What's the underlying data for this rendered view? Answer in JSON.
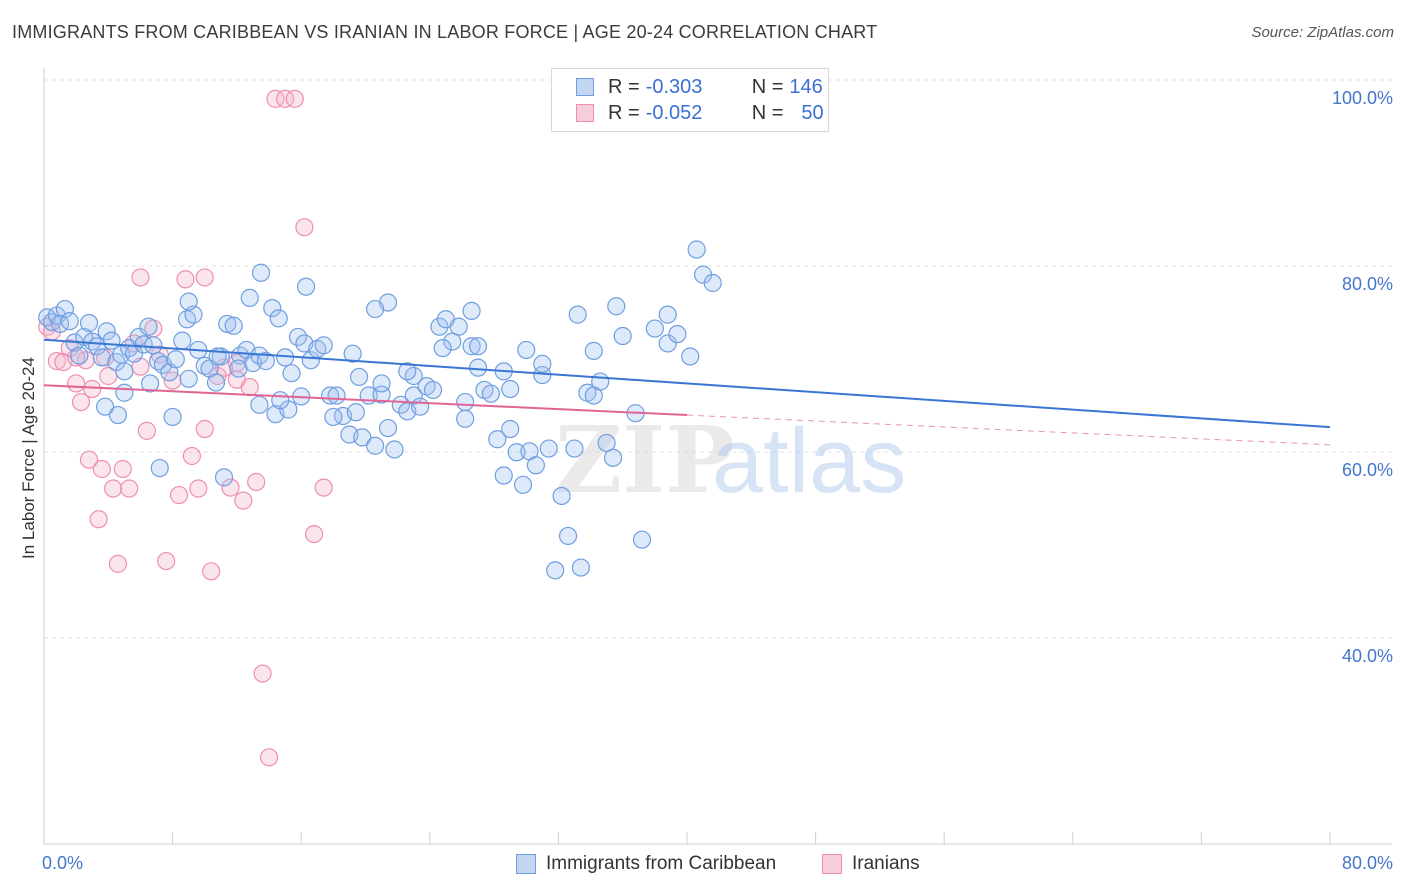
{
  "header": {
    "title": "IMMIGRANTS FROM CARIBBEAN VS IRANIAN IN LABOR FORCE | AGE 20-24 CORRELATION CHART",
    "source": "Source: ZipAtlas.com"
  },
  "legend": {
    "row1": {
      "r_label": "R =",
      "r_value": "-0.303",
      "n_label": "N =",
      "n_value": "146"
    },
    "row2": {
      "r_label": "R =",
      "r_value": "-0.052",
      "n_label": "N =",
      "n_value": "50"
    }
  },
  "bottom_legend": {
    "series1": "Immigrants from Caribbean",
    "series2": "Iranians"
  },
  "watermark": {
    "zip": "ZIP",
    "atlas": "atlas"
  },
  "colors": {
    "blue": "#6f9fe0",
    "blue_line": "#3a76d4",
    "pink": "#ee8fb0",
    "pink_line": "#e06595",
    "tick": "#4477cc"
  },
  "chart_data": {
    "type": "scatter",
    "title": "IMMIGRANTS FROM CARIBBEAN VS IRANIAN IN LABOR FORCE | AGE 20-24 CORRELATION CHART",
    "xlabel": "",
    "ylabel": "In Labor Force | Age 20-24",
    "xlim": [
      0,
      80
    ],
    "ylim": [
      20,
      104
    ],
    "x_tick_labels": [
      "0.0%",
      "80.0%"
    ],
    "y_ticks": [
      40,
      60,
      80,
      100
    ],
    "y_tick_labels": [
      "40.0%",
      "60.0%",
      "80.0%",
      "100.0%"
    ],
    "grid": true,
    "series": [
      {
        "name": "Immigrants from Caribbean",
        "r": -0.303,
        "n": 146,
        "trend": {
          "x": [
            0,
            80
          ],
          "y": [
            73.9,
            64.5
          ],
          "dashed_from": null
        },
        "points": [
          [
            0.2,
            76.3
          ],
          [
            0.5,
            75.8
          ],
          [
            0.8,
            76.5
          ],
          [
            1.0,
            75.6
          ],
          [
            1.3,
            77.2
          ],
          [
            1.6,
            75.9
          ],
          [
            1.9,
            73.6
          ],
          [
            2.2,
            72.2
          ],
          [
            2.5,
            74.2
          ],
          [
            2.8,
            75.7
          ],
          [
            3.0,
            73.7
          ],
          [
            3.3,
            73.2
          ],
          [
            3.6,
            72.0
          ],
          [
            3.9,
            74.8
          ],
          [
            4.2,
            73.8
          ],
          [
            4.5,
            71.5
          ],
          [
            4.8,
            72.3
          ],
          [
            5.0,
            70.5
          ],
          [
            5.3,
            73.0
          ],
          [
            5.6,
            72.4
          ],
          [
            5.9,
            74.2
          ],
          [
            6.2,
            73.4
          ],
          [
            6.5,
            75.3
          ],
          [
            6.8,
            73.3
          ],
          [
            7.1,
            71.6
          ],
          [
            7.4,
            71.2
          ],
          [
            7.8,
            70.4
          ],
          [
            8.2,
            71.8
          ],
          [
            8.6,
            73.8
          ],
          [
            8.9,
            76.1
          ],
          [
            9.3,
            76.6
          ],
          [
            9.6,
            72.8
          ],
          [
            10.0,
            71.1
          ],
          [
            10.3,
            70.8
          ],
          [
            10.7,
            69.3
          ],
          [
            11.0,
            72.1
          ],
          [
            11.4,
            75.6
          ],
          [
            11.8,
            75.4
          ],
          [
            12.2,
            72.2
          ],
          [
            12.6,
            72.8
          ],
          [
            13.0,
            71.4
          ],
          [
            13.4,
            72.2
          ],
          [
            13.8,
            71.6
          ],
          [
            14.2,
            77.3
          ],
          [
            14.6,
            76.2
          ],
          [
            15.0,
            72.0
          ],
          [
            15.4,
            70.3
          ],
          [
            15.8,
            74.2
          ],
          [
            16.2,
            73.5
          ],
          [
            16.6,
            71.7
          ],
          [
            17.0,
            72.9
          ],
          [
            17.4,
            73.3
          ],
          [
            17.8,
            67.9
          ],
          [
            18.2,
            67.9
          ],
          [
            18.6,
            65.7
          ],
          [
            19.0,
            63.7
          ],
          [
            19.4,
            66.1
          ],
          [
            19.8,
            63.4
          ],
          [
            20.2,
            67.9
          ],
          [
            20.6,
            62.5
          ],
          [
            21.0,
            68.0
          ],
          [
            21.4,
            64.4
          ],
          [
            21.8,
            62.1
          ],
          [
            22.2,
            66.9
          ],
          [
            22.6,
            66.2
          ],
          [
            23.0,
            67.9
          ],
          [
            23.4,
            66.7
          ],
          [
            23.8,
            68.9
          ],
          [
            24.2,
            68.5
          ],
          [
            24.6,
            75.3
          ],
          [
            25.0,
            76.1
          ],
          [
            25.4,
            73.7
          ],
          [
            25.8,
            75.3
          ],
          [
            26.2,
            67.2
          ],
          [
            26.6,
            73.2
          ],
          [
            27.0,
            70.9
          ],
          [
            27.4,
            68.5
          ],
          [
            27.8,
            68.1
          ],
          [
            28.2,
            63.2
          ],
          [
            28.6,
            59.3
          ],
          [
            29.0,
            64.3
          ],
          [
            29.4,
            61.8
          ],
          [
            29.8,
            58.3
          ],
          [
            30.2,
            61.9
          ],
          [
            30.6,
            60.4
          ],
          [
            31.0,
            70.1
          ],
          [
            31.4,
            62.2
          ],
          [
            31.8,
            49.1
          ],
          [
            32.2,
            57.1
          ],
          [
            32.6,
            52.8
          ],
          [
            33.0,
            62.2
          ],
          [
            33.4,
            49.4
          ],
          [
            33.8,
            68.2
          ],
          [
            34.2,
            67.9
          ],
          [
            34.6,
            69.4
          ],
          [
            35.0,
            62.8
          ],
          [
            35.4,
            61.2
          ],
          [
            36.0,
            74.3
          ],
          [
            36.8,
            66.0
          ],
          [
            37.2,
            52.4
          ],
          [
            38.0,
            75.1
          ],
          [
            38.8,
            73.5
          ],
          [
            39.4,
            74.5
          ],
          [
            40.2,
            72.1
          ],
          [
            40.6,
            83.6
          ],
          [
            41.0,
            80.9
          ],
          [
            41.6,
            80.0
          ],
          [
            13.5,
            81.1
          ],
          [
            16.3,
            79.6
          ],
          [
            21.4,
            77.9
          ],
          [
            26.6,
            77.0
          ],
          [
            27.0,
            73.2
          ],
          [
            28.6,
            70.5
          ],
          [
            33.2,
            76.6
          ],
          [
            34.2,
            72.7
          ],
          [
            35.6,
            77.5
          ],
          [
            38.8,
            76.6
          ],
          [
            30.0,
            72.8
          ],
          [
            31.0,
            71.3
          ],
          [
            29.0,
            68.6
          ],
          [
            5.0,
            68.2
          ],
          [
            6.6,
            69.2
          ],
          [
            9.0,
            69.7
          ],
          [
            10.8,
            72.1
          ],
          [
            12.1,
            70.8
          ],
          [
            13.4,
            66.9
          ],
          [
            14.4,
            65.9
          ],
          [
            16.0,
            67.8
          ],
          [
            18.0,
            65.6
          ],
          [
            15.2,
            66.4
          ],
          [
            14.7,
            67.4
          ],
          [
            19.6,
            69.9
          ],
          [
            21.0,
            69.2
          ],
          [
            3.8,
            66.7
          ],
          [
            4.6,
            65.8
          ],
          [
            26.2,
            65.4
          ],
          [
            23.0,
            70.0
          ],
          [
            24.8,
            73.0
          ],
          [
            19.2,
            72.4
          ],
          [
            22.6,
            70.5
          ],
          [
            20.6,
            77.2
          ],
          [
            12.8,
            78.4
          ],
          [
            9.0,
            78.0
          ],
          [
            8.0,
            65.6
          ],
          [
            11.2,
            59.1
          ],
          [
            7.2,
            60.1
          ]
        ]
      },
      {
        "name": "Iranians",
        "r": -0.052,
        "n": 50,
        "trend": {
          "x": [
            0,
            80
          ],
          "y": [
            69.0,
            62.6
          ],
          "dashed_from": 40
        },
        "points": [
          [
            0.2,
            75.3
          ],
          [
            0.5,
            74.8
          ],
          [
            0.8,
            71.6
          ],
          [
            1.2,
            71.5
          ],
          [
            1.6,
            73.0
          ],
          [
            2.0,
            69.2
          ],
          [
            2.3,
            67.2
          ],
          [
            2.6,
            71.7
          ],
          [
            2.8,
            61.0
          ],
          [
            3.0,
            68.6
          ],
          [
            3.4,
            54.6
          ],
          [
            3.8,
            72.0
          ],
          [
            4.0,
            70.0
          ],
          [
            4.3,
            57.9
          ],
          [
            4.6,
            49.8
          ],
          [
            4.9,
            60.0
          ],
          [
            5.3,
            57.9
          ],
          [
            5.6,
            73.5
          ],
          [
            6.0,
            71.0
          ],
          [
            6.4,
            64.1
          ],
          [
            6.8,
            75.1
          ],
          [
            7.2,
            72.3
          ],
          [
            7.6,
            50.1
          ],
          [
            8.0,
            69.5
          ],
          [
            8.4,
            57.2
          ],
          [
            8.8,
            80.4
          ],
          [
            9.2,
            61.4
          ],
          [
            9.6,
            57.9
          ],
          [
            10.0,
            64.3
          ],
          [
            10.4,
            49.0
          ],
          [
            10.8,
            70.0
          ],
          [
            11.2,
            70.9
          ],
          [
            11.6,
            58.0
          ],
          [
            12.0,
            69.6
          ],
          [
            12.4,
            56.6
          ],
          [
            12.8,
            68.8
          ],
          [
            13.2,
            58.6
          ],
          [
            13.6,
            38.0
          ],
          [
            14.0,
            29.0
          ],
          [
            14.4,
            99.8
          ],
          [
            15.0,
            99.8
          ],
          [
            15.6,
            99.8
          ],
          [
            16.2,
            86.0
          ],
          [
            16.8,
            53.0
          ],
          [
            17.4,
            58.0
          ],
          [
            10.0,
            80.6
          ],
          [
            12.0,
            71.4
          ],
          [
            6.0,
            80.6
          ],
          [
            3.6,
            60.0
          ],
          [
            2.0,
            72.0
          ]
        ]
      }
    ]
  }
}
